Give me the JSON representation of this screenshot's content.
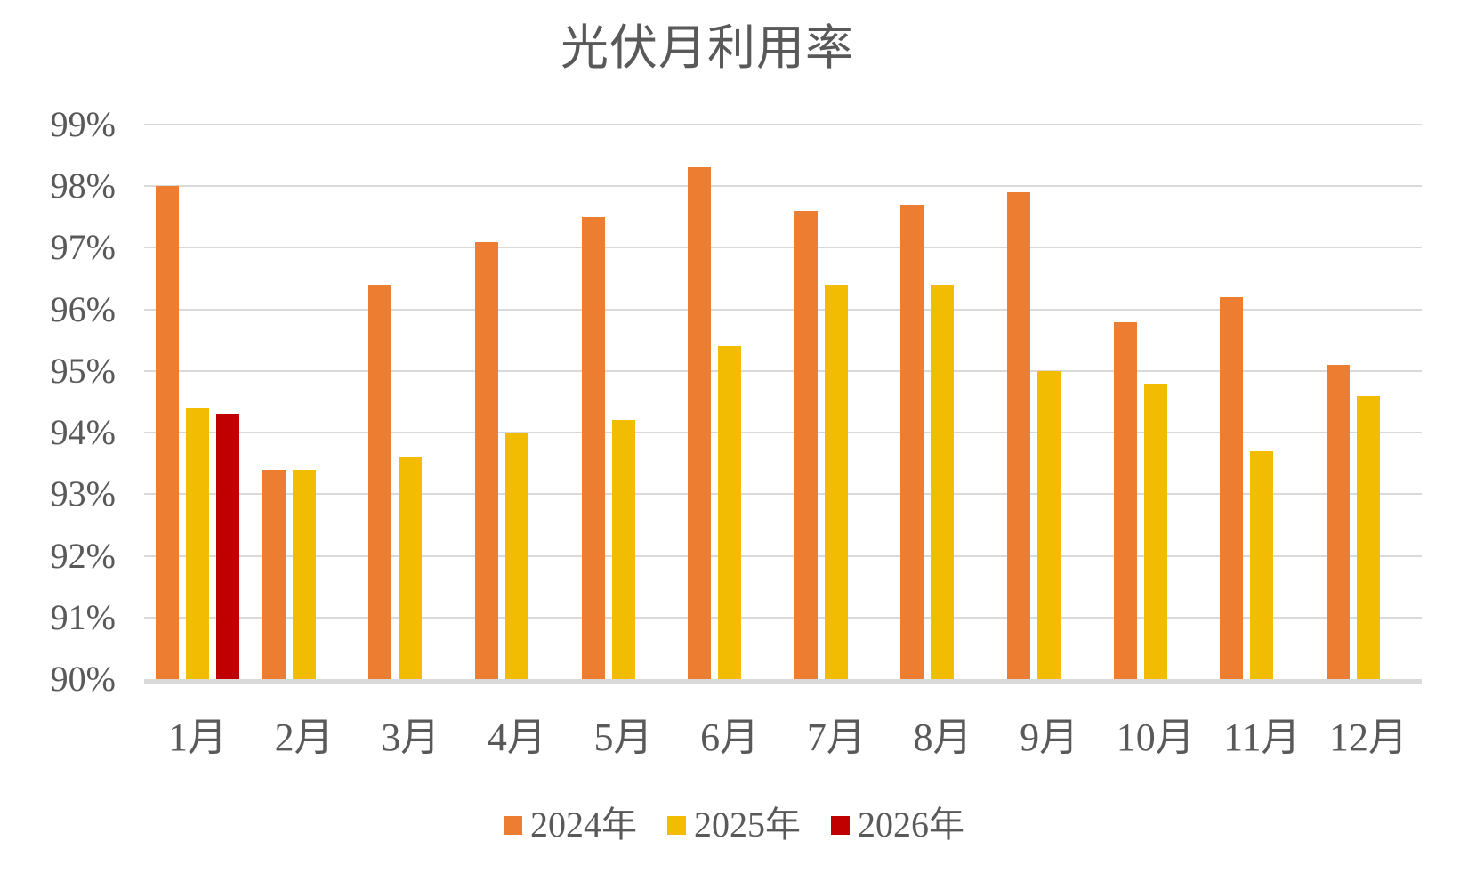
{
  "title": "光伏月利用率",
  "colors": {
    "series_2024": "#ED7D31",
    "series_2025": "#F2BC02",
    "series_2026": "#C00000",
    "gridline": "#D9D9D9",
    "axis_line": "#D9D9D9",
    "text": "#595959",
    "background": "#FFFFFF"
  },
  "y_axis": {
    "tick_labels": [
      "99%",
      "98%",
      "97%",
      "96%",
      "95%",
      "94%",
      "93%",
      "92%",
      "91%",
      "90%"
    ],
    "min": 90,
    "max": 99,
    "unit": "%"
  },
  "x_axis": {
    "tick_labels": [
      "1月",
      "2月",
      "3月",
      "4月",
      "5月",
      "6月",
      "7月",
      "8月",
      "9月",
      "10月",
      "11月",
      "12月"
    ]
  },
  "legend": {
    "items": [
      {
        "label": "2024年",
        "color": "#ED7D31"
      },
      {
        "label": "2025年",
        "color": "#F2BC02"
      },
      {
        "label": "2026年",
        "color": "#C00000"
      }
    ]
  },
  "chart_data": {
    "type": "bar",
    "title": "光伏月利用率",
    "categories": [
      "1月",
      "2月",
      "3月",
      "4月",
      "5月",
      "6月",
      "7月",
      "8月",
      "9月",
      "10月",
      "11月",
      "12月"
    ],
    "series": [
      {
        "name": "2024年",
        "color": "#ED7D31",
        "values": [
          98.0,
          93.4,
          96.4,
          97.1,
          97.5,
          98.3,
          97.6,
          97.7,
          97.9,
          95.8,
          96.2,
          95.1
        ]
      },
      {
        "name": "2025年",
        "color": "#F2BC02",
        "values": [
          94.4,
          93.4,
          93.6,
          94.0,
          94.2,
          95.4,
          96.4,
          96.4,
          95.0,
          94.8,
          93.7,
          94.6
        ]
      },
      {
        "name": "2026年",
        "color": "#C00000",
        "values": [
          94.3,
          null,
          null,
          null,
          null,
          null,
          null,
          null,
          null,
          null,
          null,
          null
        ]
      }
    ],
    "ylim": [
      90,
      99
    ],
    "y_tick_step": 1,
    "y_tick_format": "percent",
    "grid": "horizontal",
    "legend_position": "bottom"
  }
}
